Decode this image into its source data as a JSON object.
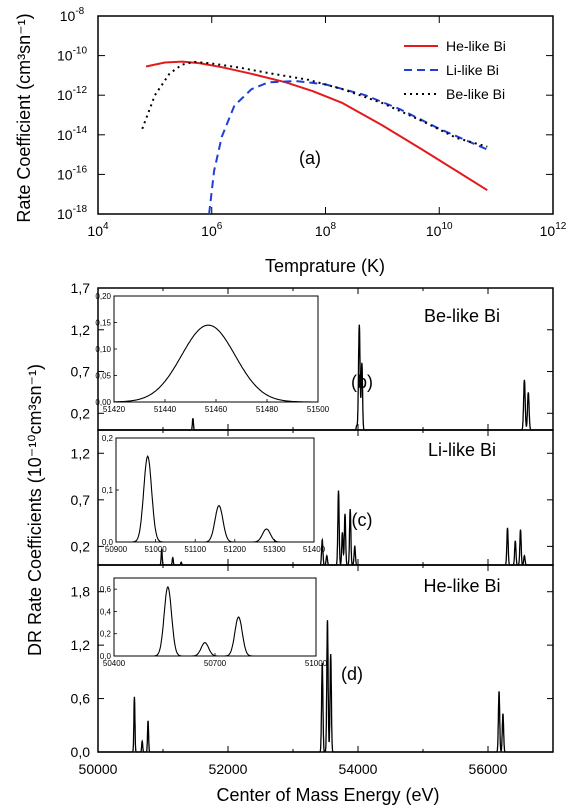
{
  "chart_data": [
    {
      "panel": "(a)",
      "type": "line",
      "xlabel": "Temprature (K)",
      "ylabel": "Rate Coefficient (cm³sn⁻¹)",
      "x_scale": "log",
      "y_scale": "log",
      "xlim": [
        10000,
        1000000000000
      ],
      "ylim": [
        1e-18,
        1e-08
      ],
      "x_tick_labels": [
        {
          "value": 10000,
          "label": "10",
          "exp": "4"
        },
        {
          "value": 1000000,
          "label": "10",
          "exp": "6"
        },
        {
          "value": 100000000,
          "label": "10",
          "exp": "8"
        },
        {
          "value": 10000000000,
          "label": "10",
          "exp": "10"
        },
        {
          "value": 1000000000000,
          "label": "10",
          "exp": "12"
        }
      ],
      "y_tick_labels": [
        {
          "value": 1e-08,
          "label": "10",
          "exp": "-8"
        },
        {
          "value": 1e-10,
          "label": "10",
          "exp": "-10"
        },
        {
          "value": 1e-12,
          "label": "10",
          "exp": "-12"
        },
        {
          "value": 1e-14,
          "label": "10",
          "exp": "-14"
        },
        {
          "value": 1e-16,
          "label": "10",
          "exp": "-16"
        },
        {
          "value": 1e-18,
          "label": "10",
          "exp": "-18"
        }
      ],
      "legend_position": "top-right",
      "series": [
        {
          "name": "He-like Bi",
          "color": "#e41a1c",
          "style": "solid",
          "points": [
            [
              70000,
              2.8e-11
            ],
            [
              150000,
              4.5e-11
            ],
            [
              300000,
              5e-11
            ],
            [
              600000,
              4.2e-11
            ],
            [
              1500000,
              2.6e-11
            ],
            [
              5000000,
              1.2e-11
            ],
            [
              20000000,
              4.5e-12
            ],
            [
              60000000,
              1.6e-12
            ],
            [
              200000000,
              4e-13
            ],
            [
              1000000000,
              3e-14
            ],
            [
              5000000000,
              1.8e-15
            ],
            [
              20000000000,
              1.5e-16
            ],
            [
              70000000000,
              1.6e-17
            ]
          ]
        },
        {
          "name": "Li-like Bi",
          "color": "#1f3fd6",
          "style": "dashed",
          "points": [
            [
              900000,
              1e-18
            ],
            [
              1100000,
              1.5e-16
            ],
            [
              1500000,
              8e-15
            ],
            [
              2500000,
              3e-13
            ],
            [
              5000000,
              2e-12
            ],
            [
              10000000,
              4.5e-12
            ],
            [
              30000000,
              5.2e-12
            ],
            [
              100000000,
              3.5e-12
            ],
            [
              500000000,
              1e-12
            ],
            [
              2000000000,
              2e-13
            ],
            [
              10000000000,
              2e-14
            ],
            [
              70000000000,
              1.8e-15
            ]
          ]
        },
        {
          "name": "Be-like Bi",
          "color": "#000000",
          "style": "dotted",
          "points": [
            [
              60000,
              2e-14
            ],
            [
              100000,
              1e-12
            ],
            [
              180000,
              1.2e-11
            ],
            [
              300000,
              3.5e-11
            ],
            [
              500000,
              4.8e-11
            ],
            [
              1000000,
              4e-11
            ],
            [
              3000000,
              2.5e-11
            ],
            [
              10000000,
              1.3e-11
            ],
            [
              50000000,
              6e-12
            ],
            [
              200000000,
              2e-12
            ],
            [
              1000000000,
              4e-13
            ],
            [
              5000000000,
              5e-14
            ],
            [
              20000000000,
              7e-15
            ],
            [
              70000000000,
              2.5e-15
            ]
          ]
        }
      ]
    },
    {
      "panel": "(b)",
      "type": "line",
      "label": "Be-like Bi",
      "xlim": [
        50000,
        57000
      ],
      "ylim": [
        0,
        1.7
      ],
      "y_tick_labels": [
        "1,7",
        "1,2",
        "0,7",
        "0,2"
      ],
      "y_ticks": [
        1.7,
        1.2,
        0.7,
        0.2
      ],
      "peaks": [
        {
          "x": 51460,
          "h": 0.14,
          "w": 8
        },
        {
          "x": 53980,
          "h": 0.05,
          "w": 8
        },
        {
          "x": 54020,
          "h": 1.26,
          "w": 12
        },
        {
          "x": 54060,
          "h": 0.8,
          "w": 10
        },
        {
          "x": 56560,
          "h": 0.6,
          "w": 12
        },
        {
          "x": 56620,
          "h": 0.45,
          "w": 12
        }
      ],
      "inset": {
        "xlim": [
          51420,
          51500
        ],
        "ylim": [
          0,
          0.2
        ],
        "x_tick_labels": [
          "51420",
          "51440",
          "51460",
          "51480",
          "51500"
        ],
        "x_ticks": [
          51420,
          51440,
          51460,
          51480,
          51500
        ],
        "y_tick_labels": [
          "0,00",
          "0,05",
          "0,10",
          "0,15",
          "0,20"
        ],
        "y_ticks": [
          0,
          0.05,
          0.1,
          0.15,
          0.2
        ],
        "peaks": [
          {
            "x": 51457,
            "h": 0.145,
            "w": 10.5
          }
        ]
      }
    },
    {
      "panel": "(c)",
      "type": "line",
      "label": "Li-like Bi",
      "xlim": [
        50000,
        57000
      ],
      "ylim": [
        0,
        1.45
      ],
      "y_tick_labels": [
        "1,2",
        "0,7",
        "0,2"
      ],
      "y_ticks": [
        1.2,
        0.7,
        0.2
      ],
      "peaks": [
        {
          "x": 50980,
          "h": 0.17,
          "w": 8
        },
        {
          "x": 51150,
          "h": 0.08,
          "w": 8
        },
        {
          "x": 51280,
          "h": 0.03,
          "w": 8
        },
        {
          "x": 53450,
          "h": 0.27,
          "w": 10
        },
        {
          "x": 53520,
          "h": 0.1,
          "w": 10
        },
        {
          "x": 53700,
          "h": 0.8,
          "w": 10
        },
        {
          "x": 53760,
          "h": 0.35,
          "w": 10
        },
        {
          "x": 53800,
          "h": 0.55,
          "w": 10
        },
        {
          "x": 53880,
          "h": 0.6,
          "w": 10
        },
        {
          "x": 53950,
          "h": 0.2,
          "w": 10
        },
        {
          "x": 56300,
          "h": 0.4,
          "w": 10
        },
        {
          "x": 56420,
          "h": 0.26,
          "w": 10
        },
        {
          "x": 56500,
          "h": 0.38,
          "w": 10
        },
        {
          "x": 56560,
          "h": 0.1,
          "w": 10
        }
      ],
      "inset": {
        "xlim": [
          50900,
          51400
        ],
        "ylim": [
          0,
          0.2
        ],
        "x_tick_labels": [
          "50900",
          "51000",
          "51100",
          "51200",
          "51300",
          "51400"
        ],
        "x_ticks": [
          50900,
          51000,
          51100,
          51200,
          51300,
          51400
        ],
        "y_tick_labels": [
          "0,0",
          "0,1",
          "0,2"
        ],
        "y_ticks": [
          0,
          0.1,
          0.2
        ],
        "peaks": [
          {
            "x": 50980,
            "h": 0.165,
            "w": 10
          },
          {
            "x": 51160,
            "h": 0.07,
            "w": 10
          },
          {
            "x": 51280,
            "h": 0.025,
            "w": 10
          }
        ]
      }
    },
    {
      "panel": "(d)",
      "type": "line",
      "label": "He-like Bi",
      "xlabel": "Center of Mass Energy (eV)",
      "ylabel": "DR Rate Coefficients (10⁻¹⁰cm³sn⁻¹)",
      "xlim": [
        50000,
        57000
      ],
      "ylim": [
        0,
        2.1
      ],
      "x_tick_labels": [
        "50000",
        "52000",
        "54000",
        "56000"
      ],
      "x_ticks": [
        50000,
        52000,
        54000,
        56000
      ],
      "y_tick_labels": [
        "1,8",
        "1,2",
        "0,6",
        "0,0"
      ],
      "y_ticks": [
        1.8,
        1.2,
        0.6,
        0.0
      ],
      "peaks": [
        {
          "x": 50560,
          "h": 0.62,
          "w": 8
        },
        {
          "x": 50680,
          "h": 0.12,
          "w": 8
        },
        {
          "x": 50770,
          "h": 0.35,
          "w": 8
        },
        {
          "x": 53450,
          "h": 1.0,
          "w": 10
        },
        {
          "x": 53530,
          "h": 1.48,
          "w": 10
        },
        {
          "x": 53580,
          "h": 1.1,
          "w": 10
        },
        {
          "x": 56170,
          "h": 0.68,
          "w": 10
        },
        {
          "x": 56230,
          "h": 0.43,
          "w": 10
        }
      ],
      "inset": {
        "xlim": [
          50400,
          51000
        ],
        "ylim": [
          0,
          0.7
        ],
        "x_tick_labels": [
          "50400",
          "50700",
          "51000"
        ],
        "x_ticks": [
          50400,
          50700,
          51000
        ],
        "y_tick_labels": [
          "0,0",
          "0,2",
          "0,4",
          "0,6"
        ],
        "y_ticks": [
          0,
          0.2,
          0.4,
          0.6
        ],
        "peaks": [
          {
            "x": 50560,
            "h": 0.62,
            "w": 11
          },
          {
            "x": 50670,
            "h": 0.12,
            "w": 11
          },
          {
            "x": 50770,
            "h": 0.35,
            "w": 11
          }
        ]
      }
    }
  ]
}
